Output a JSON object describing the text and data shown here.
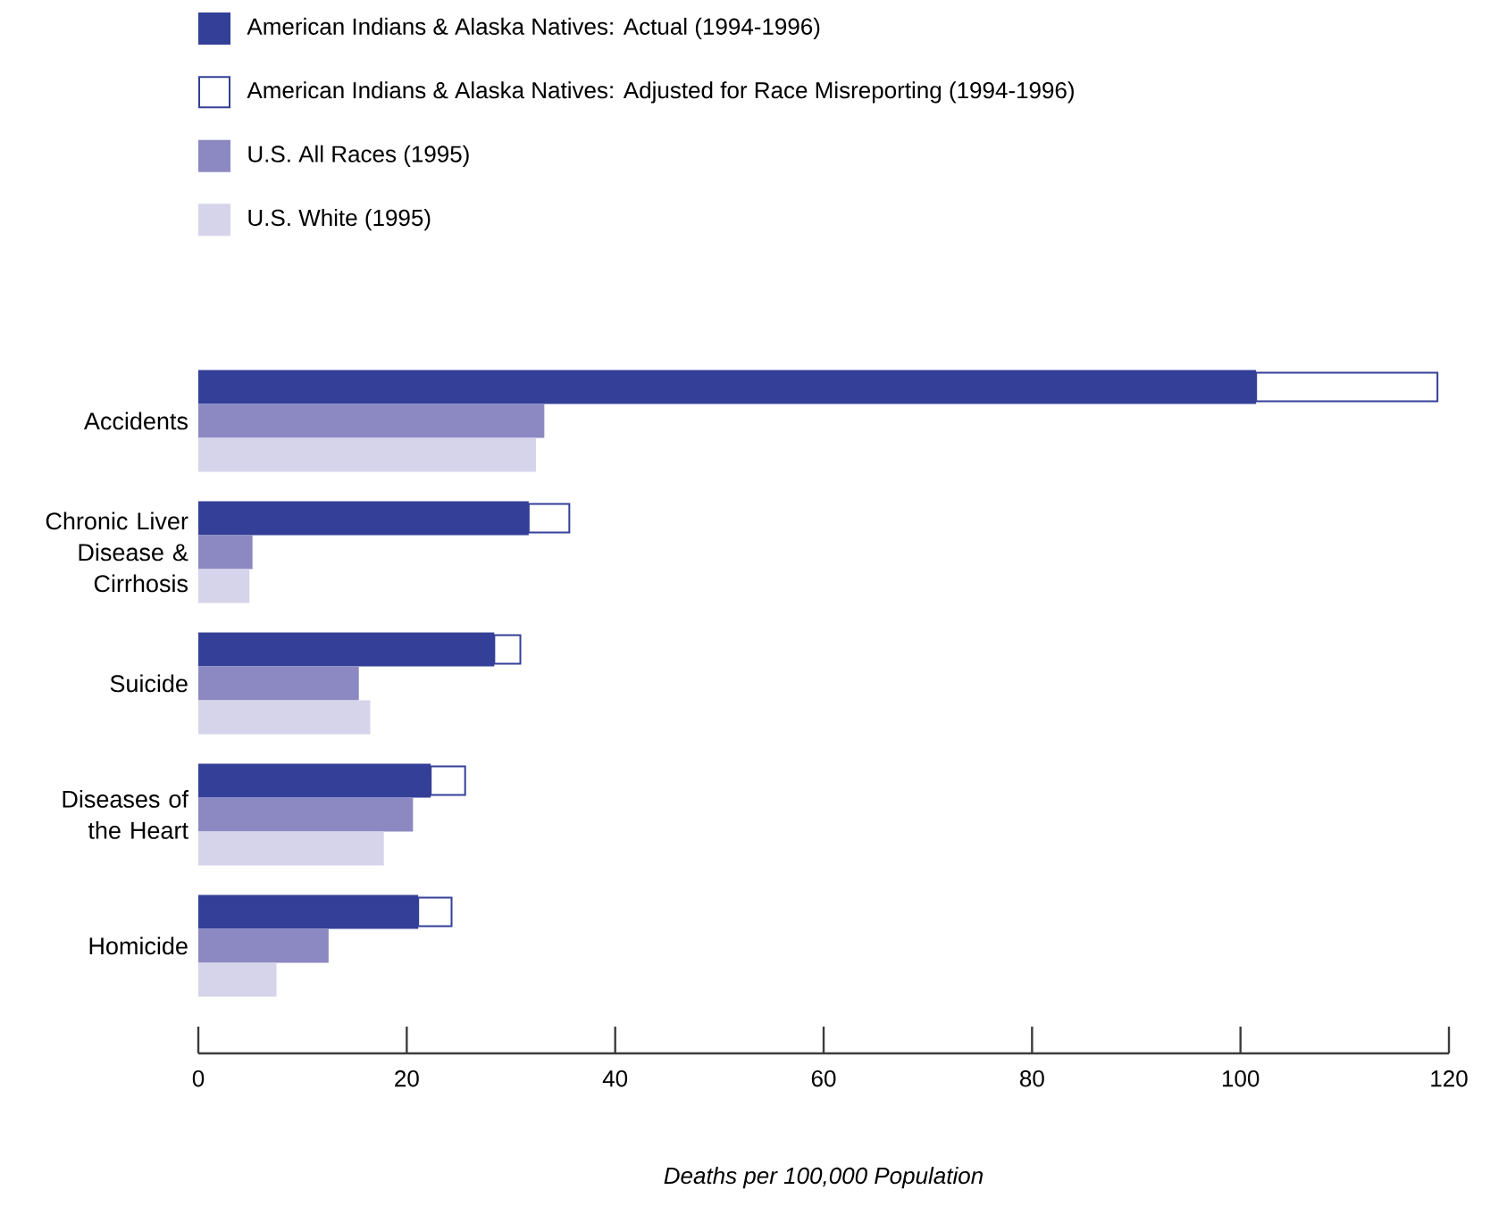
{
  "chart_data": {
    "type": "bar",
    "orientation": "horizontal",
    "categories": [
      "Accidents",
      "Chronic Liver Disease & Cirrhosis",
      "Suicide",
      "Diseases of the Heart",
      "Homicide"
    ],
    "series": [
      {
        "name": "American Indians & Alaska Natives: Actual (1994-1996)",
        "color": "#343f97",
        "values": [
          101.5,
          31.7,
          28.4,
          22.3,
          21.1
        ]
      },
      {
        "name": "American Indians & Alaska Natives: Adjusted for Race Misreporting (1994-1996)",
        "color": "#ffffff",
        "base": [
          101.5,
          31.7,
          28.4,
          22.3,
          21.1
        ],
        "values": [
          17.4,
          3.9,
          2.5,
          3.3,
          3.2
        ]
      },
      {
        "name": "U.S. All Races (1995)",
        "color": "#8c89c2",
        "values": [
          33.2,
          5.2,
          15.4,
          20.6,
          12.5
        ]
      },
      {
        "name": "U.S. White (1995)",
        "color": "#d6d4ea",
        "values": [
          32.4,
          4.9,
          16.5,
          17.8,
          7.5
        ]
      }
    ],
    "xlim": [
      0,
      120
    ],
    "xticks": [
      0,
      20,
      40,
      60,
      80,
      100,
      120
    ],
    "xlabel": "Deaths per 100,000 Population",
    "grid": false,
    "legend": "top left"
  }
}
